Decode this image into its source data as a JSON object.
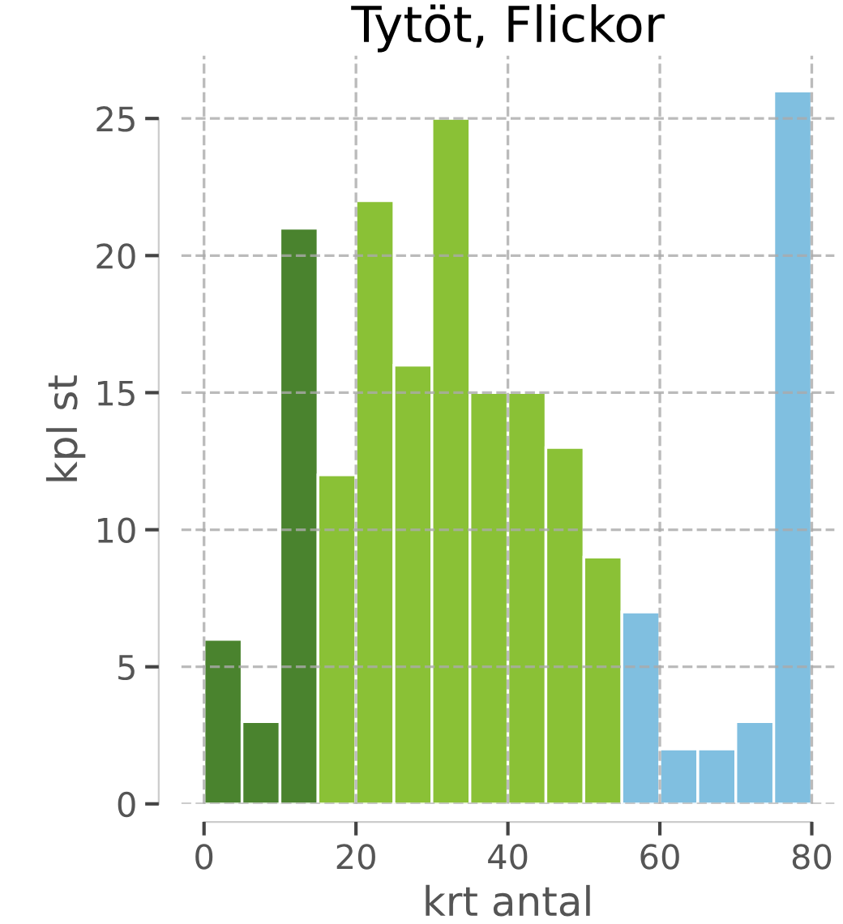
{
  "chart_data": {
    "type": "histogram",
    "title": "Tytöt, Flickor",
    "xlabel": "krt antal",
    "ylabel": "kpl st",
    "bins": [
      0,
      5,
      10,
      15,
      20,
      25,
      30,
      35,
      40,
      45,
      50,
      55,
      60,
      65,
      70,
      75,
      80
    ],
    "values": [
      6,
      3,
      21,
      12,
      22,
      16,
      25,
      15,
      15,
      13,
      9,
      7,
      2,
      2,
      3,
      26
    ],
    "colors": [
      "#4a832e",
      "#4a832e",
      "#4a832e",
      "#8ac136",
      "#8ac136",
      "#8ac136",
      "#8ac136",
      "#8ac136",
      "#8ac136",
      "#8ac136",
      "#8ac136",
      "#80bfe0",
      "#80bfe0",
      "#80bfe0",
      "#80bfe0",
      "#80bfe0"
    ],
    "xlim": [
      -3,
      83
    ],
    "ylim": [
      0,
      27.3
    ],
    "xticks": [
      0,
      20,
      40,
      60,
      80
    ],
    "yticks": [
      0,
      5,
      10,
      15,
      20,
      25
    ],
    "grid": true,
    "line_style": "dashed"
  }
}
